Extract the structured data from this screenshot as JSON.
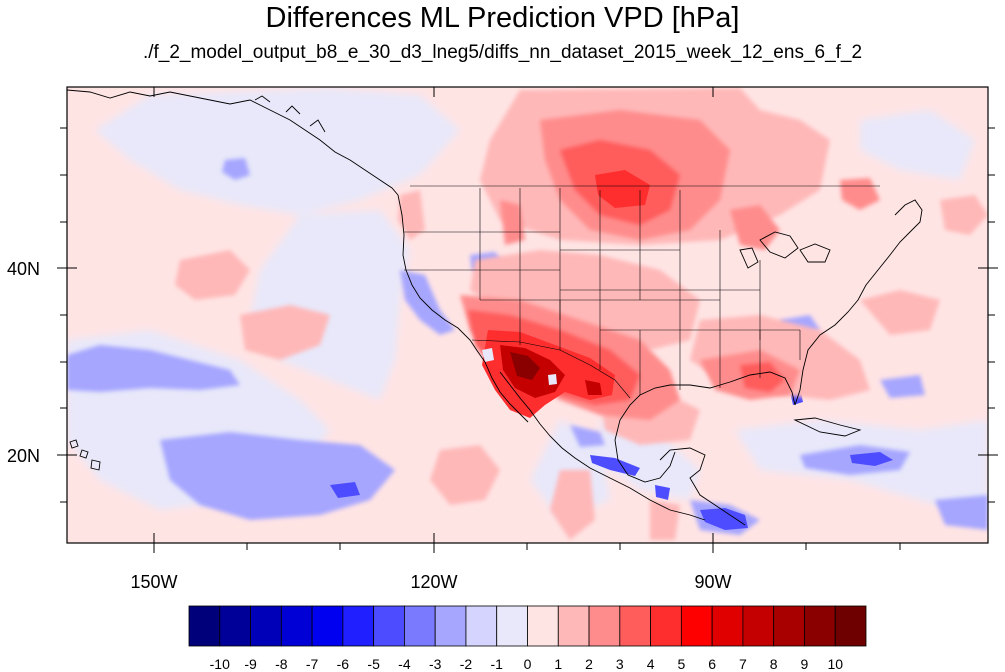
{
  "title": "Differences ML Prediction VPD [hPa]",
  "subtitle": "./f_2_model_output_b8_e_30_d3_lneg5/diffs_nn_dataset_2015_week_12_ens_6_f_2",
  "map": {
    "background_color": "#FFE4E4",
    "coastline_color": "#000000"
  },
  "axes": {
    "lon_labels": [
      "150W",
      "120W",
      "90W"
    ],
    "lat_labels": [
      "40N",
      "20N"
    ]
  },
  "colorbar": {
    "labels": [
      "-10",
      "-9",
      "-8",
      "-7",
      "-6",
      "-5",
      "-4",
      "-3",
      "-2",
      "-1",
      "0",
      "1",
      "2",
      "3",
      "4",
      "5",
      "6",
      "7",
      "8",
      "9",
      "10"
    ],
    "colors": [
      "#00007A",
      "#000099",
      "#0000B8",
      "#0000D6",
      "#0000F0",
      "#1F1FFF",
      "#4D4DFF",
      "#7A7AFF",
      "#A6A6FF",
      "#D4D4FF",
      "#E8E8FA",
      "#FFE4E4",
      "#FFB8B8",
      "#FF8C8C",
      "#FF5C5C",
      "#FF2E2E",
      "#FF0000",
      "#E00000",
      "#C40000",
      "#A80000",
      "#8A0000",
      "#6E0000"
    ]
  }
}
